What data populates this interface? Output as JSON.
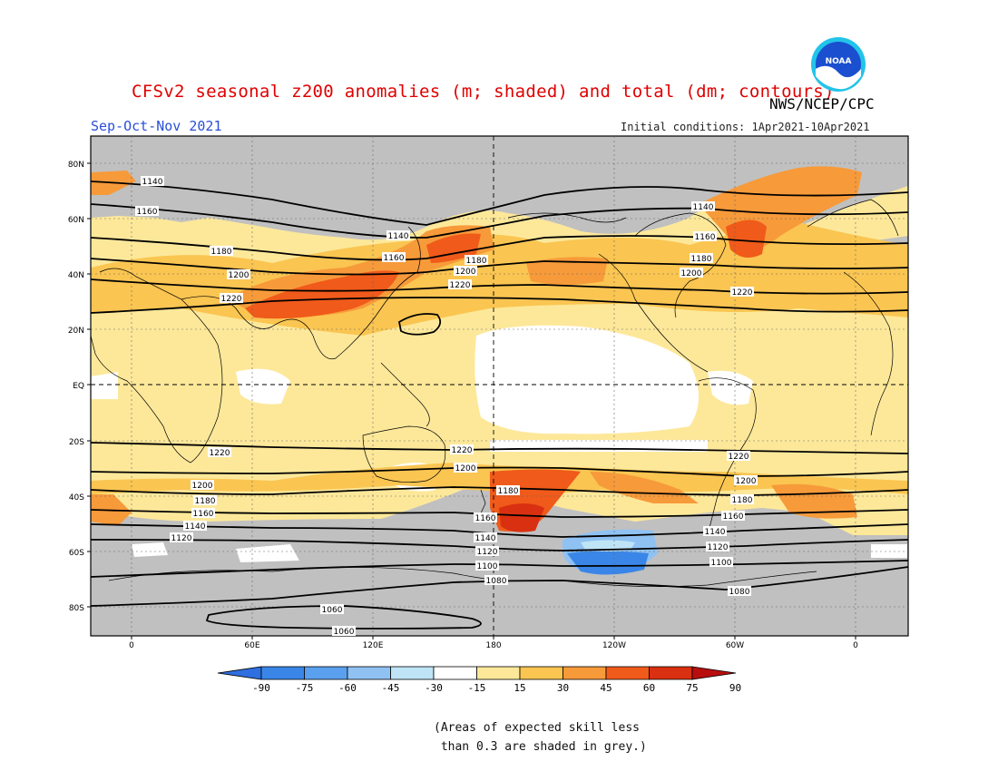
{
  "title": "CFSv2 seasonal z200 anomalies (m; shaded) and total (dm; contours)",
  "agency": "NWS/NCEP/CPC",
  "logo_text": "NOAA",
  "season": "Sep-Oct-Nov 2021",
  "initial_conditions": "Initial conditions: 1Apr2021-10Apr2021",
  "map": {
    "lat_labels": [
      "80N",
      "60N",
      "40N",
      "20N",
      "EQ",
      "20S",
      "40S",
      "60S",
      "80S"
    ],
    "lon_labels": [
      "0",
      "60E",
      "120E",
      "180",
      "120W",
      "60W",
      "0"
    ],
    "contour_labels": [
      "1140",
      "1160",
      "1180",
      "1200",
      "1220",
      "1060",
      "1080",
      "1100",
      "1120"
    ],
    "land_color": "#000000",
    "grey_low_skill": "#c0c0c0"
  },
  "colorbar": {
    "ticks": [
      "-90",
      "-75",
      "-60",
      "-45",
      "-30",
      "-15",
      "15",
      "30",
      "45",
      "60",
      "75",
      "90"
    ],
    "colors": [
      "#2f6fe0",
      "#3a86e8",
      "#5aa0ee",
      "#8fc2f3",
      "#bfe4f6",
      "#ffffff",
      "#fde89a",
      "#fac551",
      "#f79a3a",
      "#f05a1a",
      "#d83010",
      "#b80e0e"
    ]
  },
  "note": "(Areas of expected skill less\n than 0.3 are shaded in grey.)"
}
